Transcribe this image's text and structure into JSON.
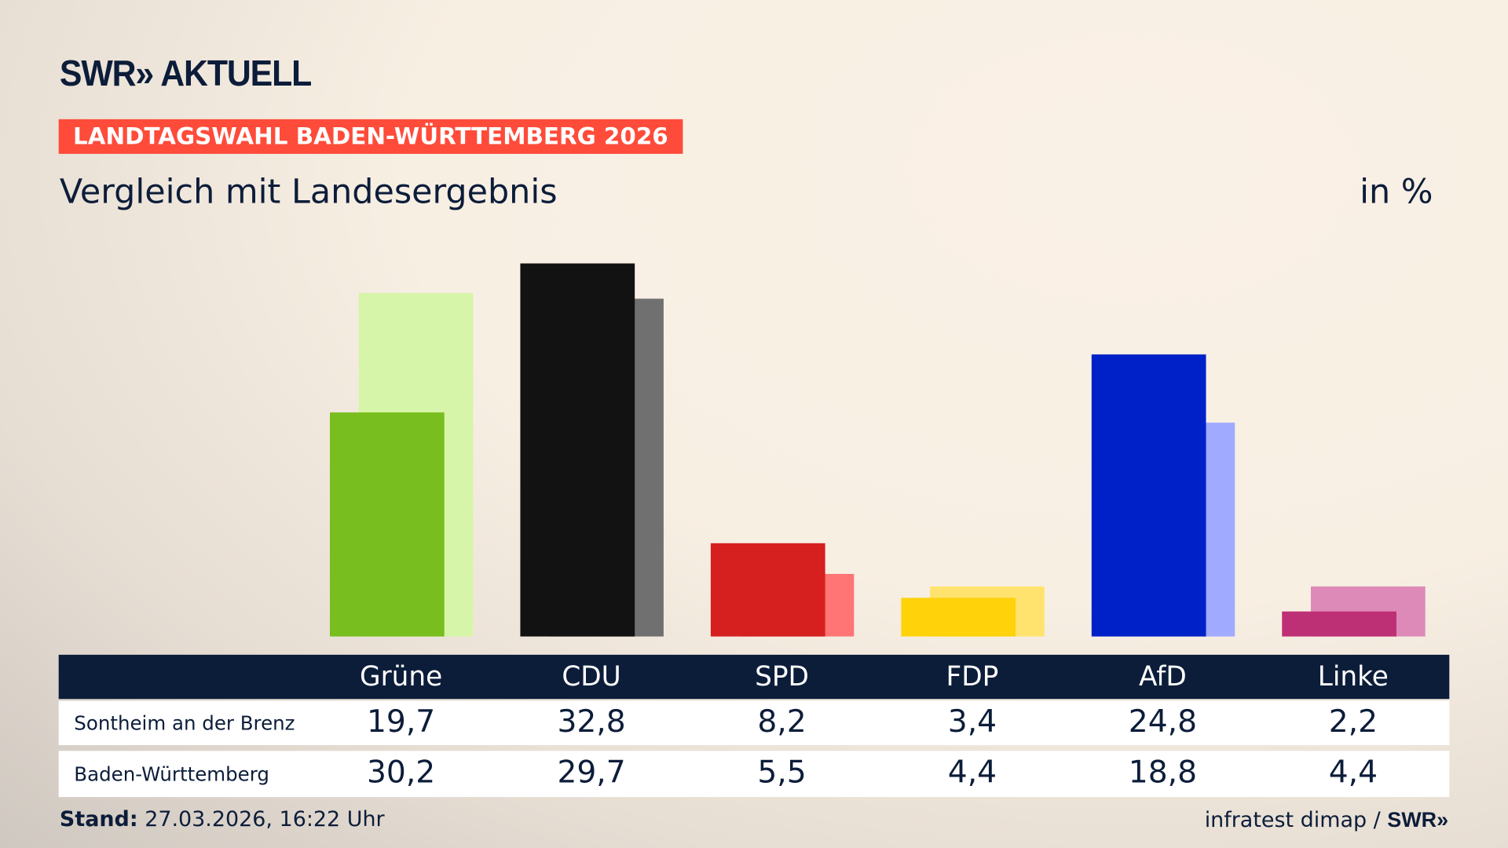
{
  "header": {
    "logo": "SWR» AKTUELL",
    "badge": "LANDTAGSWAHL BADEN-WÜRTTEMBERG 2026",
    "subtitle": "Vergleich mit Landesergebnis",
    "unit": "in %"
  },
  "chart_data": {
    "type": "bar",
    "categories": [
      "Grüne",
      "CDU",
      "SPD",
      "FDP",
      "AfD",
      "Linke"
    ],
    "series": [
      {
        "name": "Sontheim an der Brenz",
        "values": [
          19.7,
          32.8,
          8.2,
          3.4,
          24.8,
          2.2
        ]
      },
      {
        "name": "Baden-Württemberg",
        "values": [
          30.2,
          29.7,
          5.5,
          4.4,
          18.8,
          4.4
        ]
      }
    ],
    "display_values": [
      [
        "19,7",
        "32,8",
        "8,2",
        "3,4",
        "24,8",
        "2,2"
      ],
      [
        "30,2",
        "29,7",
        "5,5",
        "4,4",
        "18,8",
        "4,4"
      ]
    ],
    "colors_dark": [
      "#78be1e",
      "#121212",
      "#d61f1f",
      "#ffd20a",
      "#0021c8",
      "#be3075"
    ],
    "colors_light": [
      "#d7f5a8",
      "#707070",
      "#ff7575",
      "#ffe36e",
      "#a0aaff",
      "#de8ab8"
    ],
    "ylim": [
      0,
      35
    ],
    "grid": false
  },
  "footer": {
    "stand_label": "Stand:",
    "stand_value": "27.03.2026, 16:22 Uhr",
    "source": "infratest dimap / ",
    "source_logo": "SWR»"
  }
}
